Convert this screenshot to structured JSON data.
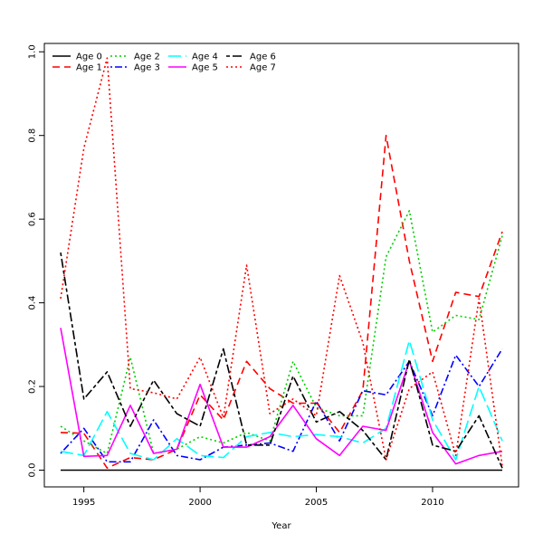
{
  "chart_data": {
    "type": "line",
    "title": "",
    "xlabel": "Year",
    "ylabel": "",
    "xlim": [
      1993.3,
      2013.7
    ],
    "ylim": [
      -0.04,
      1.02
    ],
    "xticks": [
      1995,
      2000,
      2005,
      2010
    ],
    "yticks": [
      0.0,
      0.2,
      0.4,
      0.6,
      0.8,
      1.0
    ],
    "ytick_labels": [
      "0.0",
      "0.2",
      "0.4",
      "0.6",
      "0.8",
      "1.0"
    ],
    "grid": false,
    "legend_placement": "top-left",
    "x": [
      1994,
      1995,
      1996,
      1997,
      1998,
      1999,
      2000,
      2001,
      2002,
      2003,
      2004,
      2005,
      2006,
      2007,
      2008,
      2009,
      2010,
      2011,
      2012,
      2013
    ],
    "series": [
      {
        "name": "Age 0",
        "color": "#000000",
        "dash": "solid",
        "values": [
          0,
          0,
          0,
          0,
          0,
          0,
          0,
          0,
          0,
          0,
          0,
          0,
          0,
          0,
          0,
          0,
          0,
          0,
          0,
          0
        ]
      },
      {
        "name": "Age 1",
        "color": "#ff0000",
        "dash": "dashed",
        "values": [
          0.09,
          0.088,
          0.005,
          0.03,
          0.025,
          0.05,
          0.18,
          0.12,
          0.26,
          0.195,
          0.16,
          0.16,
          0.09,
          0.19,
          0.8,
          0.5,
          0.26,
          0.425,
          0.415,
          0.57
        ]
      },
      {
        "name": "Age 2",
        "color": "#00cd00",
        "dash": "dotted",
        "values": [
          0.105,
          0.07,
          0.04,
          0.27,
          0.04,
          0.05,
          0.08,
          0.065,
          0.09,
          0.07,
          0.26,
          0.15,
          0.13,
          0.13,
          0.51,
          0.62,
          0.33,
          0.37,
          0.36,
          0.56
        ]
      },
      {
        "name": "Age 3",
        "color": "#0000ff",
        "dash": "dotdash",
        "values": [
          0.04,
          0.1,
          0.02,
          0.02,
          0.12,
          0.035,
          0.025,
          0.055,
          0.06,
          0.065,
          0.045,
          0.165,
          0.07,
          0.19,
          0.18,
          0.26,
          0.13,
          0.275,
          0.2,
          0.29
        ]
      },
      {
        "name": "Age 4",
        "color": "#00ffff",
        "dash": "longdash",
        "values": [
          0.045,
          0.035,
          0.14,
          0.04,
          0.025,
          0.075,
          0.035,
          0.03,
          0.08,
          0.09,
          0.08,
          0.085,
          0.08,
          0.065,
          0.1,
          0.31,
          0.12,
          0.025,
          0.2,
          0.07
        ]
      },
      {
        "name": "Age 5",
        "color": "#ff00ff",
        "dash": "solid",
        "values": [
          0.34,
          0.033,
          0.035,
          0.155,
          0.04,
          0.05,
          0.205,
          0.055,
          0.055,
          0.08,
          0.155,
          0.075,
          0.035,
          0.105,
          0.095,
          0.26,
          0.09,
          0.015,
          0.035,
          0.045
        ]
      },
      {
        "name": "Age 6",
        "color": "#000000",
        "dash": "twodash",
        "values": [
          0.52,
          0.17,
          0.235,
          0.105,
          0.215,
          0.135,
          0.105,
          0.29,
          0.06,
          0.06,
          0.225,
          0.115,
          0.14,
          0.095,
          0.025,
          0.265,
          0.06,
          0.045,
          0.13,
          0.005
        ]
      },
      {
        "name": "Age 7",
        "color": "#ff0000",
        "dash": "dotted",
        "values": [
          0.41,
          0.77,
          0.985,
          0.195,
          0.185,
          0.17,
          0.27,
          0.125,
          0.49,
          0.135,
          0.17,
          0.13,
          0.465,
          0.305,
          0.025,
          0.195,
          0.235,
          0.035,
          0.41,
          0.01
        ]
      }
    ]
  }
}
